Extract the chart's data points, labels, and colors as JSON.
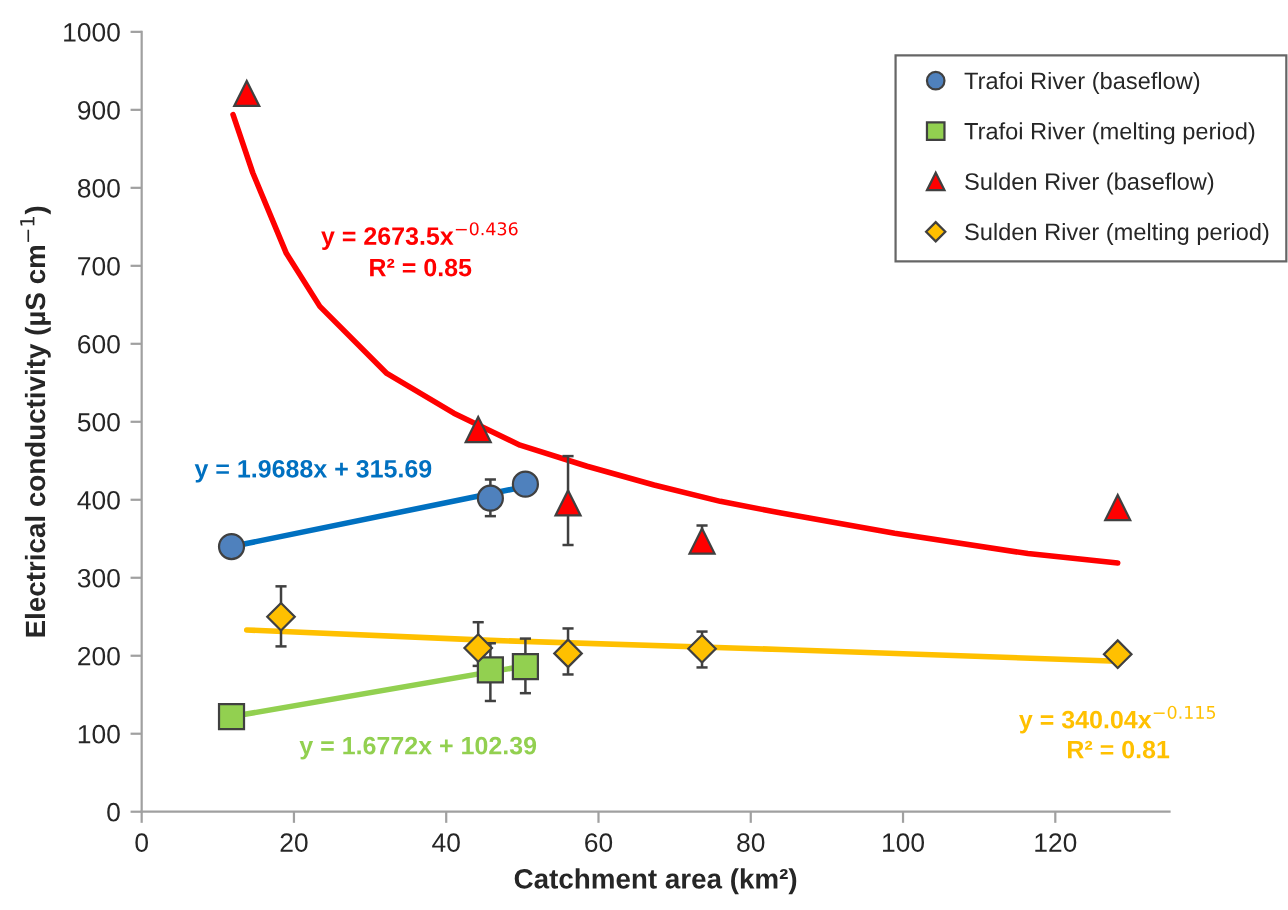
{
  "chart_data": {
    "type": "scatter",
    "xlabel": "Catchment area (km²)",
    "ylabel": "Electrical conductivity (µS cm$^{−1}$)",
    "xlim": [
      0,
      135
    ],
    "xticks": [
      0,
      20,
      40,
      60,
      80,
      100,
      120
    ],
    "ylim": [
      0,
      1000
    ],
    "yticks": [
      0,
      100,
      200,
      300,
      400,
      500,
      600,
      700,
      800,
      900,
      1000
    ],
    "grid": false,
    "legend": "top right",
    "series": [
      {
        "name": "Trafoi River (baseflow)",
        "marker": "circle",
        "color": "#4f81bd",
        "x": [
          11.8,
          45.8,
          50.4
        ],
        "values": [
          340,
          402,
          420
        ],
        "errors": [
          null,
          [
            379,
            426
          ],
          null
        ]
      },
      {
        "name": "Trafoi River (melting period)",
        "marker": "square",
        "color": "#92d050",
        "x": [
          11.8,
          45.8,
          50.4
        ],
        "values": [
          122,
          182,
          186
        ],
        "errors": [
          null,
          [
            142,
            216
          ],
          [
            152,
            222
          ]
        ]
      },
      {
        "name": "Sulden River (baseflow)",
        "marker": "triangle",
        "color": "#ff0000",
        "x": [
          13.8,
          44.2,
          56,
          73.6,
          128.2
        ],
        "values": [
          921,
          490,
          396,
          347,
          390
        ],
        "errors": [
          null,
          null,
          [
            342,
            456
          ],
          [
            333,
            367
          ],
          null
        ]
      },
      {
        "name": "Sulden River (melting period)",
        "marker": "diamond",
        "color": "#ffc000",
        "x": [
          18.3,
          44.2,
          56,
          73.6,
          128.2
        ],
        "values": [
          250,
          210,
          203,
          209,
          202
        ],
        "errors": [
          [
            212,
            289
          ],
          [
            187,
            243
          ],
          [
            176,
            235
          ],
          [
            185,
            231
          ],
          [
            194,
            210
          ]
        ]
      },
      {
        "type": "line",
        "marker": "none",
        "line_style": "solid",
        "color": "#0070c0",
        "x": [
          11.8,
          50.4
        ],
        "values": [
          340,
          417
        ]
      },
      {
        "type": "line",
        "marker": "none",
        "line_style": "solid",
        "color": "#92d050",
        "x": [
          11.8,
          50.4
        ],
        "values": [
          122,
          187
        ]
      },
      {
        "type": "line",
        "marker": "none",
        "line_style": "solid",
        "color": "#ff0000",
        "x": [
          12.0,
          14.6,
          19,
          23.4,
          32.2,
          41,
          49.7,
          58.5,
          67.3,
          76,
          84,
          98.9,
          116.4,
          128.2
        ],
        "values": [
          894,
          819,
          716,
          648,
          562,
          511,
          470,
          443,
          419,
          398,
          383,
          357,
          331,
          319
        ]
      },
      {
        "type": "line",
        "marker": "none",
        "line_style": "solid",
        "color": "#ffc000",
        "x": [
          13.8,
          45,
          84,
          128.2
        ],
        "values": [
          233,
          220,
          208,
          193
        ]
      }
    ],
    "annotations": [
      "y = 2673.5x$^{−0.436}$",
      "R² = 0.85",
      "y = 1.9688x + 315.69",
      "y = 1.6772x + 102.39",
      "y = 340.04x$^{−0.115}$",
      "R² = 0.81"
    ]
  }
}
